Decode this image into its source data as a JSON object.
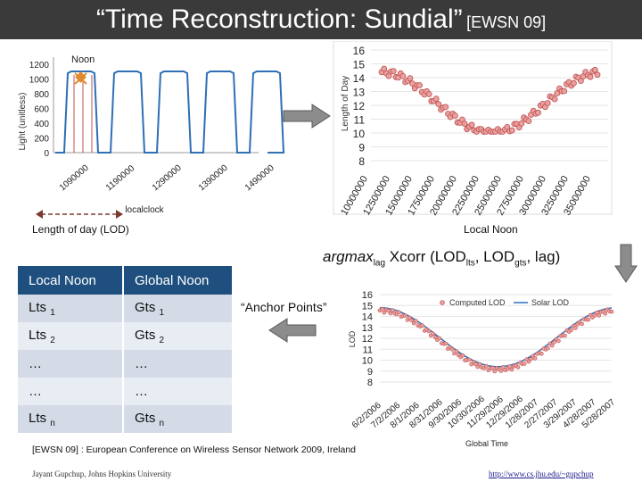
{
  "title": {
    "main": "“Time Reconstruction: Sundial”",
    "cite": "[EWSN 09]"
  },
  "colors": {
    "topbar": "#3a3a3a",
    "light_line": "#2e6fb5",
    "noon_marker": "#e08a2e",
    "red_marker": "#c0504d",
    "arrow_fill": "#8c8c8c",
    "table_head": "#1f4f7e"
  },
  "light_chart": {
    "ylabel": "Light (unitless)",
    "xlabel": "localclock",
    "noon_label": "Noon",
    "yticks": [
      "1200",
      "1000",
      "800",
      "600",
      "400",
      "200",
      "0"
    ],
    "xticks": [
      "1090000",
      "1190000",
      "1290000",
      "1390000",
      "1490000"
    ],
    "caption": "Length of day (LOD)"
  },
  "lod_chart": {
    "ylabel": "Length of Day",
    "xlabel": "Local Noon",
    "yticks": [
      "16",
      "15",
      "14",
      "13",
      "12",
      "11",
      "10",
      "9",
      "8"
    ],
    "xticks": [
      "10000000",
      "12500000",
      "15000000",
      "17500000",
      "20000000",
      "22500000",
      "25000000",
      "27500000",
      "30000000",
      "32500000",
      "35000000"
    ]
  },
  "formula": {
    "prefix": "argmax",
    "sub1": "lag",
    "mid": " Xcorr (LOD",
    "sub2": "lts",
    "mid2": ", LOD",
    "sub3": "gts",
    "suffix": ", lag)"
  },
  "anchor_label": "“Anchor Points”",
  "table": {
    "headers": [
      "Local Noon",
      "Global Noon"
    ],
    "rows": [
      {
        "a": "Lts",
        "asub": "1",
        "b": "Gts",
        "bsub": "1"
      },
      {
        "a": "Lts",
        "asub": "2",
        "b": "Gts",
        "bsub": "2"
      },
      {
        "a": "…",
        "asub": "",
        "b": "…",
        "bsub": ""
      },
      {
        "a": "…",
        "asub": "",
        "b": "…",
        "bsub": ""
      },
      {
        "a": "Lts",
        "asub": "n",
        "b": "Gts",
        "bsub": "n"
      }
    ]
  },
  "global_chart": {
    "ylabel": "LOD",
    "xlabel": "Global Time",
    "legend": {
      "computed": "Computed LOD",
      "solar": "Solar LOD"
    },
    "yticks": [
      "16",
      "15",
      "14",
      "13",
      "12",
      "11",
      "10",
      "9",
      "8"
    ],
    "xticks": [
      "6/2/2006",
      "7/2/2006",
      "8/1/2006",
      "8/31/2006",
      "9/30/2006",
      "10/30/2006",
      "11/29/2006",
      "12/29/2006",
      "1/28/2007",
      "2/27/2007",
      "3/29/2007",
      "4/28/2007",
      "5/28/2007"
    ]
  },
  "footer": {
    "reference": "[EWSN 09] : European Conference on Wireless Sensor Network 2009, Ireland",
    "author": "Jayant Gupchup, Johns Hopkins University",
    "url": "http://www.cs.jhu.edu/~gupchup"
  }
}
